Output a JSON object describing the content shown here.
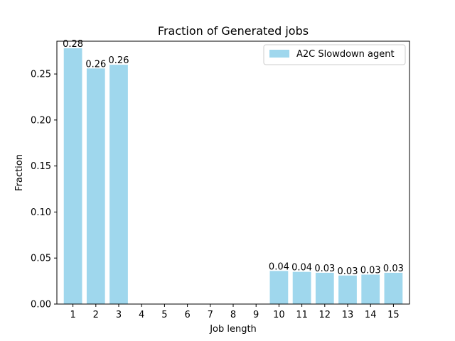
{
  "chart_data": {
    "type": "bar",
    "title": "Fraction of Generated jobs",
    "xlabel": "Job length",
    "ylabel": "Fraction",
    "categories": [
      "1",
      "2",
      "3",
      "4",
      "5",
      "6",
      "7",
      "8",
      "9",
      "10",
      "11",
      "12",
      "13",
      "14",
      "15"
    ],
    "series": [
      {
        "name": "A2C Slowdown agent",
        "values": [
          0.278,
          0.256,
          0.26,
          0,
          0,
          0,
          0,
          0,
          0,
          0.036,
          0.035,
          0.034,
          0.031,
          0.032,
          0.034
        ],
        "labels": [
          "0.28",
          "0.26",
          "0.26",
          "",
          "",
          "",
          "",
          "",
          "",
          "0.04",
          "0.04",
          "0.03",
          "0.03",
          "0.03",
          "0.03"
        ],
        "color": "#9fd7ed"
      }
    ],
    "ylim": [
      0,
      0.2856
    ],
    "yticks": [
      "0.00",
      "0.05",
      "0.10",
      "0.15",
      "0.20",
      "0.25"
    ],
    "ytick_values": [
      0,
      0.05,
      0.1,
      0.15,
      0.2,
      0.25
    ],
    "legend_position": "top-right",
    "grid": false
  }
}
